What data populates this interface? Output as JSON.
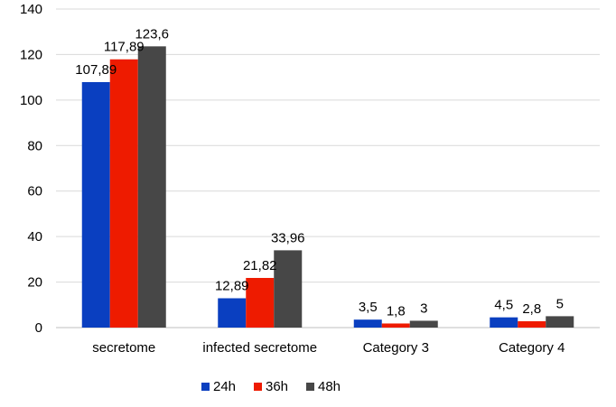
{
  "chart_data": {
    "type": "bar",
    "title": "",
    "xlabel": "",
    "ylabel": "",
    "ylim": [
      0,
      140
    ],
    "yticks": [
      0,
      20,
      40,
      60,
      80,
      100,
      120,
      140
    ],
    "ytick_labels": [
      "0",
      "20",
      "40",
      "60",
      "80",
      "100",
      "120",
      "140"
    ],
    "grid": true,
    "legend_position": "bottom",
    "categories": [
      "secretome",
      "infected secretome",
      "Category 3",
      "Category 4"
    ],
    "series": [
      {
        "name": "24h",
        "color": "#0a3fc0",
        "values": [
          107.89,
          12.89,
          3.5,
          4.5
        ],
        "labels": [
          "107,89",
          "12,89",
          "3,5",
          "4,5"
        ]
      },
      {
        "name": "36h",
        "color": "#ee1b00",
        "values": [
          117.89,
          21.82,
          1.8,
          2.8
        ],
        "labels": [
          "117,89",
          "21,82",
          "1,8",
          "2,8"
        ]
      },
      {
        "name": "48h",
        "color": "#474747",
        "values": [
          123.6,
          33.96,
          3,
          5
        ],
        "labels": [
          "123,6",
          "33,96",
          "3",
          "5"
        ]
      }
    ]
  }
}
